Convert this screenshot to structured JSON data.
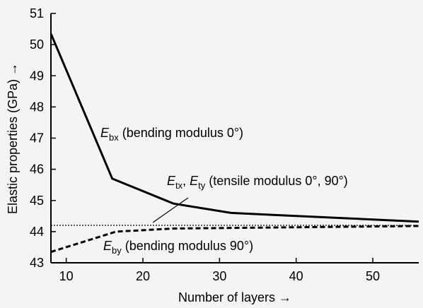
{
  "chart_data": {
    "type": "line",
    "title": "",
    "xlabel": "Number of layers →",
    "ylabel": "Elastic properties (GPa) →",
    "xlim": [
      8,
      56
    ],
    "ylim": [
      43,
      51
    ],
    "xticks": [
      10,
      20,
      30,
      40,
      50
    ],
    "yticks": [
      43,
      44,
      45,
      46,
      47,
      48,
      49,
      50,
      51
    ],
    "grid": false,
    "series": [
      {
        "key": "ebx",
        "style": "solid",
        "x": [
          8,
          16,
          24,
          31.5,
          56
        ],
        "y": [
          50.35,
          45.7,
          44.9,
          44.6,
          44.32
        ]
      },
      {
        "key": "ebt",
        "style": "dotted",
        "x": [
          8,
          56
        ],
        "y": [
          44.2,
          44.2
        ]
      },
      {
        "key": "eby",
        "style": "dashed",
        "x": [
          8,
          16.5,
          24,
          56
        ],
        "y": [
          43.35,
          44.0,
          44.1,
          44.18
        ]
      }
    ],
    "annotations": {
      "ebx": {
        "symbol": "E",
        "sub": "bx",
        "text": " (bending modulus 0°)"
      },
      "etxy": {
        "symbol1": "E",
        "sub1": "tx",
        "sep": ", ",
        "symbol2": "E",
        "sub2": "ty",
        "text": " (tensile modulus 0°, 90°)"
      },
      "eby": {
        "symbol": "E",
        "sub": "by",
        "text": " (bending modulus 90°)"
      }
    }
  }
}
